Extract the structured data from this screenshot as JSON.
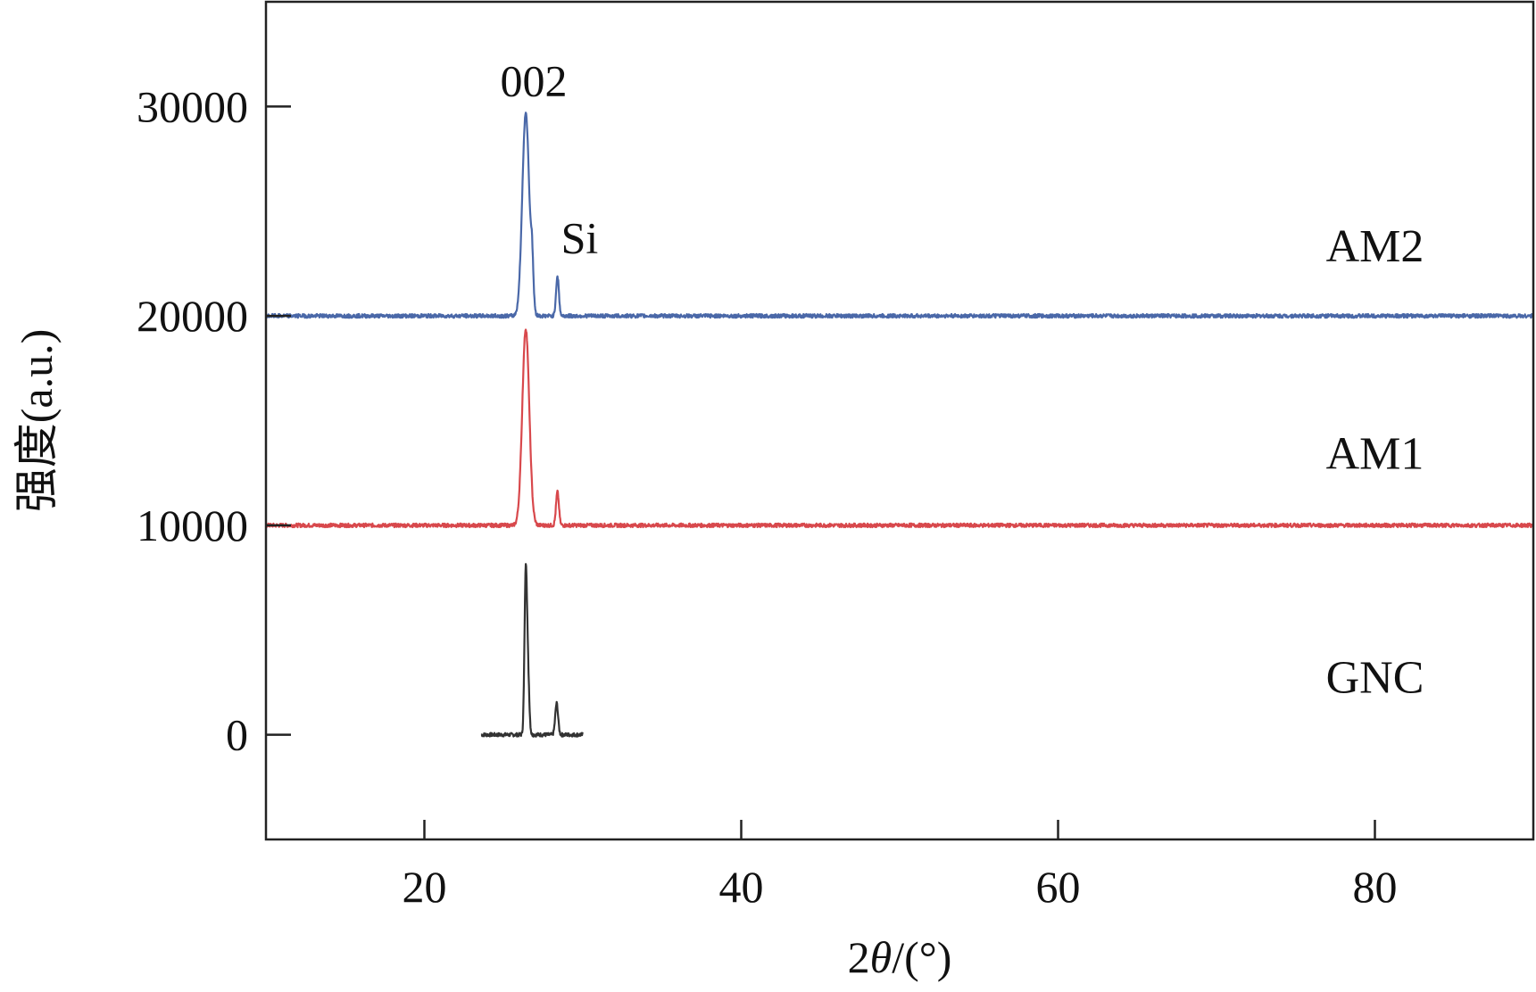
{
  "chart_data": {
    "type": "line",
    "title": "",
    "xlabel_prefix": "2",
    "xlabel_symbol": "θ",
    "xlabel_suffix": "/(°)",
    "ylabel": "强度(a.u.)",
    "xlim": [
      10,
      90
    ],
    "ylim": [
      -5000,
      35000
    ],
    "xticks": [
      20,
      40,
      60,
      80
    ],
    "yticks": [
      0,
      10000,
      20000,
      30000
    ],
    "grid": false,
    "legend": "none",
    "annotations": [
      {
        "text": "002",
        "x": 26.9,
        "y": 30500
      },
      {
        "text": "Si",
        "x": 29.8,
        "y": 23000
      }
    ],
    "series": [
      {
        "name": "GNC",
        "color": "#333333",
        "label_x": 80,
        "label_y": 2000,
        "baseline": 0,
        "x_range": [
          23.6,
          30.0
        ],
        "peaks": [
          {
            "x": 26.4,
            "height": 7800,
            "width": 0.08
          },
          {
            "x": 26.55,
            "height": 2400,
            "width": 0.08
          },
          {
            "x": 28.35,
            "height": 1500,
            "width": 0.09
          }
        ],
        "x": [
          23.6,
          25.0,
          26.0,
          26.25,
          26.4,
          26.55,
          26.7,
          27.0,
          28.0,
          28.35,
          28.6,
          30.0
        ],
        "values": [
          0,
          50,
          150,
          700,
          7800,
          6000,
          300,
          50,
          100,
          1500,
          80,
          0
        ]
      },
      {
        "name": "AM1",
        "color": "#d8484c",
        "label_x": 80,
        "label_y": 12700,
        "baseline": 10000,
        "x_range": [
          10,
          90
        ],
        "peaks": [
          {
            "x": 26.4,
            "height": 9400,
            "width": 0.22
          },
          {
            "x": 28.4,
            "height": 1600,
            "width": 0.09
          }
        ],
        "x": [
          10,
          25.0,
          25.8,
          26.1,
          26.4,
          26.7,
          27.1,
          28.0,
          28.4,
          28.7,
          60.0,
          90
        ],
        "values": [
          10000,
          10100,
          10700,
          13500,
          19400,
          13000,
          10300,
          10050,
          11600,
          10050,
          10100,
          10000
        ]
      },
      {
        "name": "AM2",
        "color": "#4a68a8",
        "label_x": 80,
        "label_y": 22600,
        "baseline": 20000,
        "x_range": [
          10,
          90
        ],
        "peaks": [
          {
            "x": 26.4,
            "height": 9700,
            "width": 0.22
          },
          {
            "x": 26.8,
            "height": 1900,
            "width": 0.08
          },
          {
            "x": 28.4,
            "height": 1900,
            "width": 0.09
          }
        ],
        "x": [
          10,
          25.0,
          25.8,
          26.1,
          26.4,
          26.7,
          26.8,
          27.1,
          28.0,
          28.4,
          28.7,
          60.0,
          90
        ],
        "values": [
          20000,
          20100,
          20700,
          23500,
          29700,
          24000,
          22400,
          20300,
          20050,
          21900,
          20050,
          20100,
          20000
        ]
      }
    ]
  }
}
